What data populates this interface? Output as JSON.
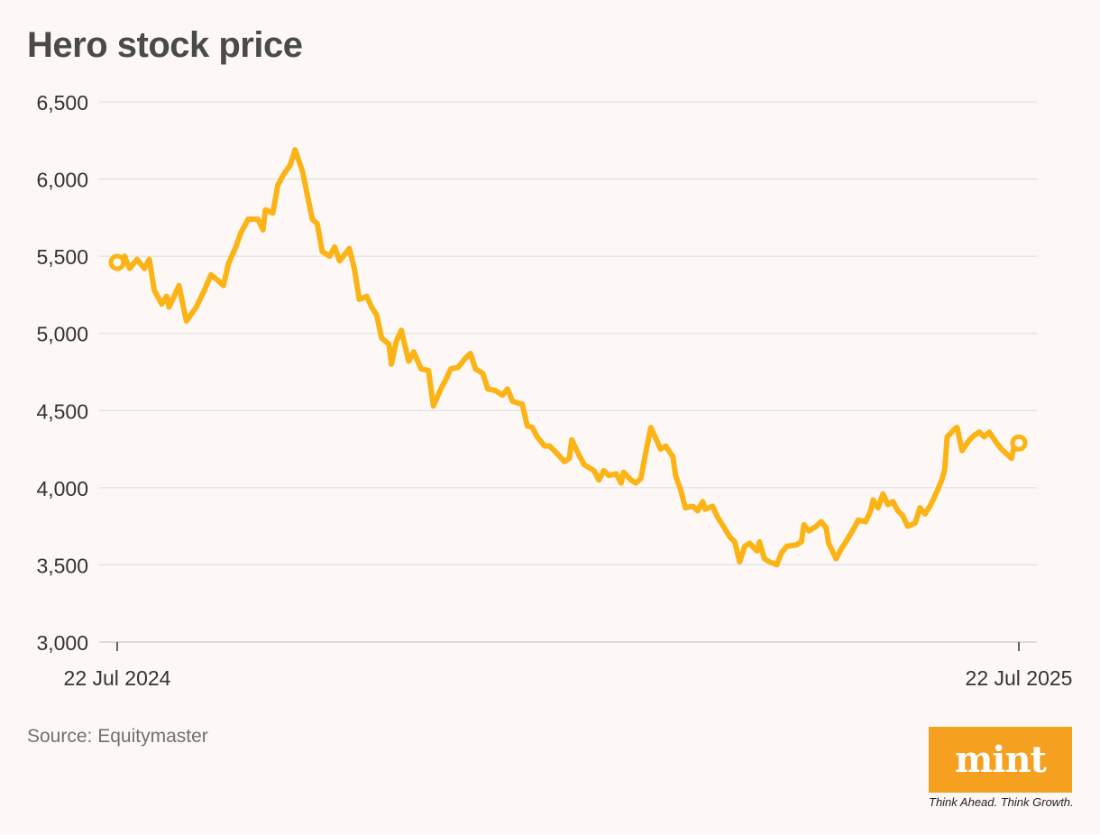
{
  "chart_data": {
    "type": "line",
    "title": "Hero stock price",
    "xlabel": "",
    "ylabel": "",
    "ylim": [
      3000,
      6500
    ],
    "yticks": [
      3000,
      3500,
      4000,
      4500,
      5000,
      5500,
      6000,
      6500
    ],
    "ytick_labels": [
      "3,000",
      "3,500",
      "4,000",
      "4,500",
      "5,000",
      "5,500",
      "6,000",
      "6,500"
    ],
    "xlim": [
      "2024-07-22",
      "2025-07-22"
    ],
    "xtick_labels": [
      {
        "date": "2024-07-22",
        "label": "22 Jul 2024"
      },
      {
        "date": "2025-07-22",
        "label": "22 Jul 2025"
      }
    ],
    "grid": true,
    "line_color": "#fbb316",
    "series": [
      {
        "name": "",
        "points": [
          [
            "2024-07-22",
            5460
          ],
          [
            "2024-07-25",
            5500
          ],
          [
            "2024-07-27",
            5420
          ],
          [
            "2024-07-30",
            5480
          ],
          [
            "2024-08-02",
            5420
          ],
          [
            "2024-08-04",
            5480
          ],
          [
            "2024-08-06",
            5280
          ],
          [
            "2024-08-09",
            5190
          ],
          [
            "2024-08-11",
            5240
          ],
          [
            "2024-08-12",
            5170
          ],
          [
            "2024-08-16",
            5310
          ],
          [
            "2024-08-19",
            5080
          ],
          [
            "2024-08-23",
            5170
          ],
          [
            "2024-08-26",
            5270
          ],
          [
            "2024-08-29",
            5380
          ],
          [
            "2024-09-01",
            5340
          ],
          [
            "2024-09-03",
            5310
          ],
          [
            "2024-09-05",
            5450
          ],
          [
            "2024-09-08",
            5560
          ],
          [
            "2024-09-10",
            5650
          ],
          [
            "2024-09-13",
            5740
          ],
          [
            "2024-09-17",
            5740
          ],
          [
            "2024-09-19",
            5670
          ],
          [
            "2024-09-20",
            5800
          ],
          [
            "2024-09-23",
            5780
          ],
          [
            "2024-09-25",
            5960
          ],
          [
            "2024-09-27",
            6020
          ],
          [
            "2024-09-30",
            6090
          ],
          [
            "2024-10-02",
            6190
          ],
          [
            "2024-10-05",
            6050
          ],
          [
            "2024-10-09",
            5740
          ],
          [
            "2024-10-11",
            5710
          ],
          [
            "2024-10-13",
            5530
          ],
          [
            "2024-10-16",
            5500
          ],
          [
            "2024-10-18",
            5560
          ],
          [
            "2024-10-20",
            5470
          ],
          [
            "2024-10-22",
            5510
          ],
          [
            "2024-10-24",
            5550
          ],
          [
            "2024-10-26",
            5420
          ],
          [
            "2024-10-28",
            5220
          ],
          [
            "2024-10-31",
            5240
          ],
          [
            "2024-11-02",
            5170
          ],
          [
            "2024-11-04",
            5120
          ],
          [
            "2024-11-06",
            4970
          ],
          [
            "2024-11-09",
            4930
          ],
          [
            "2024-11-10",
            4800
          ],
          [
            "2024-11-12",
            4950
          ],
          [
            "2024-11-14",
            5020
          ],
          [
            "2024-11-17",
            4820
          ],
          [
            "2024-11-19",
            4880
          ],
          [
            "2024-11-22",
            4770
          ],
          [
            "2024-11-25",
            4760
          ],
          [
            "2024-11-27",
            4530
          ],
          [
            "2024-11-30",
            4640
          ],
          [
            "2024-12-02",
            4700
          ],
          [
            "2024-12-04",
            4770
          ],
          [
            "2024-12-07",
            4780
          ],
          [
            "2024-12-10",
            4840
          ],
          [
            "2024-12-12",
            4870
          ],
          [
            "2024-12-14",
            4770
          ],
          [
            "2024-12-17",
            4740
          ],
          [
            "2024-12-19",
            4640
          ],
          [
            "2024-12-22",
            4630
          ],
          [
            "2024-12-25",
            4600
          ],
          [
            "2024-12-27",
            4640
          ],
          [
            "2024-12-29",
            4560
          ],
          [
            "2025-01-02",
            4540
          ],
          [
            "2025-01-04",
            4400
          ],
          [
            "2025-01-06",
            4390
          ],
          [
            "2025-01-08",
            4330
          ],
          [
            "2025-01-11",
            4270
          ],
          [
            "2025-01-13",
            4270
          ],
          [
            "2025-01-15",
            4240
          ],
          [
            "2025-01-19",
            4170
          ],
          [
            "2025-01-21",
            4190
          ],
          [
            "2025-01-22",
            4310
          ],
          [
            "2025-01-25",
            4210
          ],
          [
            "2025-01-27",
            4150
          ],
          [
            "2025-01-31",
            4110
          ],
          [
            "2025-02-02",
            4050
          ],
          [
            "2025-02-04",
            4110
          ],
          [
            "2025-02-06",
            4080
          ],
          [
            "2025-02-09",
            4090
          ],
          [
            "2025-02-11",
            4030
          ],
          [
            "2025-02-12",
            4100
          ],
          [
            "2025-02-15",
            4050
          ],
          [
            "2025-02-17",
            4030
          ],
          [
            "2025-02-19",
            4060
          ],
          [
            "2025-02-21",
            4230
          ],
          [
            "2025-02-23",
            4390
          ],
          [
            "2025-02-27",
            4250
          ],
          [
            "2025-03-01",
            4270
          ],
          [
            "2025-03-04",
            4200
          ],
          [
            "2025-03-05",
            4080
          ],
          [
            "2025-03-07",
            3990
          ],
          [
            "2025-03-09",
            3870
          ],
          [
            "2025-03-12",
            3880
          ],
          [
            "2025-03-14",
            3850
          ],
          [
            "2025-03-16",
            3910
          ],
          [
            "2025-03-17",
            3860
          ],
          [
            "2025-03-20",
            3880
          ],
          [
            "2025-03-22",
            3810
          ],
          [
            "2025-03-24",
            3760
          ],
          [
            "2025-03-27",
            3680
          ],
          [
            "2025-03-29",
            3650
          ],
          [
            "2025-03-31",
            3520
          ],
          [
            "2025-04-02",
            3620
          ],
          [
            "2025-04-04",
            3640
          ],
          [
            "2025-04-07",
            3590
          ],
          [
            "2025-04-08",
            3650
          ],
          [
            "2025-04-10",
            3540
          ],
          [
            "2025-04-12",
            3520
          ],
          [
            "2025-04-15",
            3500
          ],
          [
            "2025-04-17",
            3580
          ],
          [
            "2025-04-19",
            3620
          ],
          [
            "2025-04-23",
            3630
          ],
          [
            "2025-04-25",
            3650
          ],
          [
            "2025-04-26",
            3760
          ],
          [
            "2025-04-28",
            3720
          ],
          [
            "2025-05-01",
            3750
          ],
          [
            "2025-05-03",
            3780
          ],
          [
            "2025-05-05",
            3740
          ],
          [
            "2025-05-06",
            3640
          ],
          [
            "2025-05-09",
            3540
          ],
          [
            "2025-05-11",
            3600
          ],
          [
            "2025-05-13",
            3650
          ],
          [
            "2025-05-16",
            3730
          ],
          [
            "2025-05-18",
            3790
          ],
          [
            "2025-05-21",
            3780
          ],
          [
            "2025-05-23",
            3850
          ],
          [
            "2025-05-24",
            3920
          ],
          [
            "2025-05-26",
            3870
          ],
          [
            "2025-05-28",
            3960
          ],
          [
            "2025-05-30",
            3890
          ],
          [
            "2025-06-01",
            3910
          ],
          [
            "2025-06-03",
            3850
          ],
          [
            "2025-06-05",
            3820
          ],
          [
            "2025-06-07",
            3750
          ],
          [
            "2025-06-10",
            3770
          ],
          [
            "2025-06-12",
            3870
          ],
          [
            "2025-06-14",
            3830
          ],
          [
            "2025-06-16",
            3880
          ],
          [
            "2025-06-19",
            3980
          ],
          [
            "2025-06-21",
            4060
          ],
          [
            "2025-06-22",
            4120
          ],
          [
            "2025-06-23",
            4330
          ],
          [
            "2025-06-26",
            4380
          ],
          [
            "2025-06-27",
            4390
          ],
          [
            "2025-06-29",
            4240
          ],
          [
            "2025-07-02",
            4310
          ],
          [
            "2025-07-04",
            4340
          ],
          [
            "2025-07-06",
            4360
          ],
          [
            "2025-07-08",
            4330
          ],
          [
            "2025-07-10",
            4360
          ],
          [
            "2025-07-13",
            4290
          ],
          [
            "2025-07-15",
            4250
          ],
          [
            "2025-07-17",
            4220
          ],
          [
            "2025-07-19",
            4190
          ],
          [
            "2025-07-20",
            4260
          ],
          [
            "2025-07-22",
            4290
          ]
        ]
      }
    ]
  },
  "source": "Source: Equitymaster",
  "logo": {
    "text": "mint",
    "tagline": "Think Ahead. Think Growth.",
    "color": "#f5a01e"
  }
}
